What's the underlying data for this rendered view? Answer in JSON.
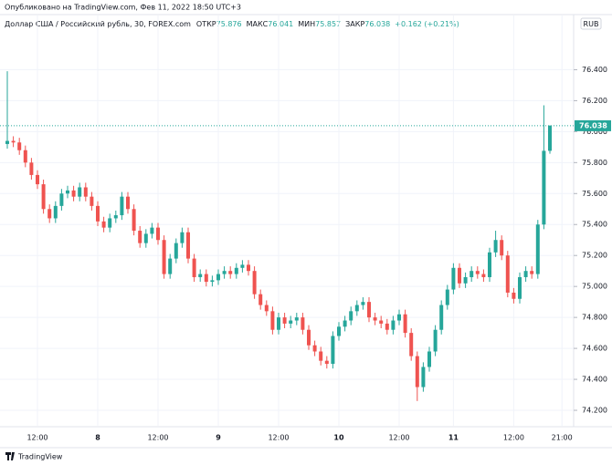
{
  "chart_data": {
    "type": "candlestick",
    "published": "Опубликовано на TradingView.com, Фев 11, 2022 18:50 UTC+3",
    "symbol": "Доллар США / Российский рубль, 30, FOREX.com",
    "ohlc_labels": [
      "ОТКР",
      "МАКС",
      "МИН",
      "ЗАКР"
    ],
    "change": "+0.162 (+0.21%)",
    "currency": "RUB",
    "brand": "TradingView",
    "up_color": "#26a69a",
    "down_color": "#ef5350",
    "grid": true,
    "categories": [
      null,
      null,
      null,
      null,
      null,
      "12:00",
      null,
      null,
      null,
      null,
      null,
      null,
      null,
      null,
      null,
      "8",
      null,
      null,
      null,
      null,
      null,
      null,
      null,
      null,
      null,
      "12:00",
      null,
      null,
      null,
      null,
      null,
      null,
      null,
      null,
      null,
      "9",
      null,
      null,
      null,
      null,
      null,
      null,
      null,
      null,
      null,
      "12:00",
      null,
      null,
      null,
      null,
      null,
      null,
      null,
      null,
      null,
      "10",
      null,
      null,
      null,
      null,
      null,
      null,
      null,
      null,
      null,
      "12:00",
      null,
      null,
      null,
      null,
      null,
      null,
      null,
      null,
      "11",
      null,
      null,
      null,
      null,
      null,
      null,
      null,
      null,
      null,
      "12:00",
      null,
      null,
      null,
      null,
      null,
      null,
      null,
      "21:00"
    ],
    "open": [
      75.92,
      75.94,
      75.93,
      75.88,
      75.8,
      75.72,
      75.66,
      75.5,
      75.44,
      75.52,
      75.6,
      75.62,
      75.58,
      75.64,
      75.58,
      75.52,
      75.42,
      75.38,
      75.44,
      75.46,
      75.58,
      75.5,
      75.36,
      75.28,
      75.34,
      75.38,
      75.3,
      75.08,
      75.18,
      75.28,
      75.35,
      75.18,
      75.06,
      75.08,
      75.03,
      75.04,
      75.08,
      75.1,
      75.08,
      75.12,
      75.14,
      75.1,
      74.95,
      74.88,
      74.84,
      74.72,
      74.8,
      74.76,
      74.78,
      74.8,
      74.72,
      74.62,
      74.58,
      74.52,
      74.5,
      74.68,
      74.74,
      74.78,
      74.84,
      74.88,
      74.9,
      74.8,
      74.78,
      74.76,
      74.72,
      74.78,
      74.82,
      74.7,
      74.55,
      74.35,
      74.48,
      74.58,
      74.72,
      74.88,
      74.98,
      75.12,
      75.02,
      75.06,
      75.1,
      75.08,
      75.06,
      75.22,
      75.3,
      75.2,
      74.96,
      74.92,
      75.06,
      75.1,
      75.08,
      75.4,
      75.876,
      null,
      null
    ],
    "high": [
      76.39,
      75.97,
      75.96,
      75.91,
      75.83,
      75.75,
      75.69,
      75.53,
      75.55,
      75.63,
      75.65,
      75.65,
      75.67,
      75.67,
      75.61,
      75.55,
      75.45,
      75.47,
      75.49,
      75.61,
      75.61,
      75.53,
      75.39,
      75.37,
      75.41,
      75.41,
      75.33,
      75.21,
      75.31,
      75.38,
      75.38,
      75.21,
      75.11,
      75.11,
      75.07,
      75.11,
      75.13,
      75.13,
      75.15,
      75.17,
      75.17,
      75.13,
      74.98,
      74.91,
      74.87,
      74.83,
      74.83,
      74.81,
      74.83,
      74.83,
      74.75,
      74.65,
      74.61,
      74.55,
      74.71,
      74.77,
      74.81,
      74.87,
      74.91,
      74.93,
      74.93,
      74.83,
      74.81,
      74.79,
      74.81,
      74.85,
      74.85,
      74.73,
      74.58,
      74.51,
      74.61,
      74.75,
      74.91,
      75.01,
      75.15,
      75.15,
      75.09,
      75.13,
      75.13,
      75.11,
      75.25,
      75.36,
      75.33,
      75.23,
      74.99,
      75.09,
      75.13,
      75.13,
      75.43,
      76.17,
      76.041,
      null,
      null
    ],
    "low": [
      75.89,
      75.9,
      75.85,
      75.77,
      75.69,
      75.63,
      75.47,
      75.41,
      75.41,
      75.49,
      75.57,
      75.55,
      75.55,
      75.55,
      75.49,
      75.39,
      75.35,
      75.35,
      75.41,
      75.43,
      75.47,
      75.33,
      75.25,
      75.25,
      75.31,
      75.27,
      75.05,
      75.05,
      75.15,
      75.25,
      75.15,
      75.03,
      75.03,
      75.0,
      75.0,
      75.01,
      75.05,
      75.05,
      75.05,
      75.09,
      75.07,
      74.92,
      74.85,
      74.81,
      74.69,
      74.69,
      74.73,
      74.73,
      74.75,
      74.69,
      74.59,
      74.55,
      74.49,
      74.47,
      74.47,
      74.65,
      74.71,
      74.75,
      74.81,
      74.85,
      74.77,
      74.75,
      74.73,
      74.69,
      74.69,
      74.75,
      74.67,
      74.52,
      74.26,
      74.32,
      74.45,
      74.55,
      74.69,
      74.85,
      74.95,
      74.99,
      74.99,
      75.03,
      75.05,
      75.03,
      75.03,
      75.19,
      75.17,
      74.93,
      74.89,
      74.89,
      75.03,
      75.05,
      75.05,
      75.37,
      75.857,
      null,
      null
    ],
    "close": [
      75.94,
      75.93,
      75.88,
      75.8,
      75.72,
      75.66,
      75.5,
      75.44,
      75.52,
      75.6,
      75.62,
      75.58,
      75.64,
      75.58,
      75.52,
      75.42,
      75.38,
      75.44,
      75.46,
      75.58,
      75.5,
      75.36,
      75.28,
      75.34,
      75.38,
      75.3,
      75.08,
      75.18,
      75.28,
      75.35,
      75.18,
      75.06,
      75.08,
      75.03,
      75.04,
      75.08,
      75.1,
      75.08,
      75.12,
      75.14,
      75.1,
      74.95,
      74.88,
      74.84,
      74.72,
      74.8,
      74.76,
      74.78,
      74.8,
      74.72,
      74.62,
      74.58,
      74.52,
      74.5,
      74.68,
      74.74,
      74.78,
      74.84,
      74.88,
      74.9,
      74.8,
      74.78,
      74.76,
      74.72,
      74.78,
      74.82,
      74.7,
      74.55,
      74.35,
      74.48,
      74.58,
      74.72,
      74.88,
      74.98,
      75.12,
      75.02,
      75.06,
      75.1,
      75.08,
      75.06,
      75.22,
      75.3,
      75.2,
      74.96,
      74.92,
      75.06,
      75.1,
      75.08,
      75.4,
      75.876,
      76.038,
      null,
      null
    ],
    "ylim": [
      74.1,
      76.75
    ],
    "yticks": [
      {
        "value": 74.2,
        "label": "74.200"
      },
      {
        "value": 74.4,
        "label": "74.400"
      },
      {
        "value": 74.6,
        "label": "74.600"
      },
      {
        "value": 74.8,
        "label": "74.800"
      },
      {
        "value": 75.0,
        "label": "75.000"
      },
      {
        "value": 75.2,
        "label": "75.200"
      },
      {
        "value": 75.4,
        "label": "75.400"
      },
      {
        "value": 75.6,
        "label": "75.600"
      },
      {
        "value": 75.8,
        "label": "75.800"
      },
      {
        "value": 76.0,
        "label": "76.000"
      },
      {
        "value": 76.2,
        "label": "76.200"
      },
      {
        "value": 76.4,
        "label": "76.400"
      }
    ]
  }
}
